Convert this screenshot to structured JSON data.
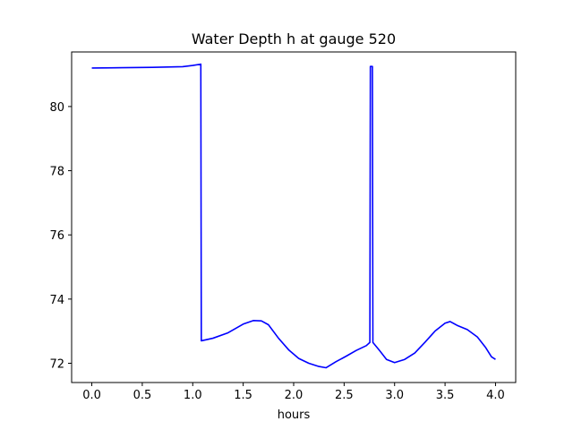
{
  "chart_data": {
    "type": "line",
    "title": "Water Depth h at gauge 520",
    "xlabel": "hours",
    "ylabel": "",
    "xlim": [
      -0.2,
      4.2
    ],
    "ylim": [
      71.4,
      81.7
    ],
    "xticks": [
      0.0,
      0.5,
      1.0,
      1.5,
      2.0,
      2.5,
      3.0,
      3.5,
      4.0
    ],
    "xtick_labels": [
      "0.0",
      "0.5",
      "1.0",
      "1.5",
      "2.0",
      "2.5",
      "3.0",
      "3.5",
      "4.0"
    ],
    "yticks": [
      72,
      74,
      76,
      78,
      80
    ],
    "ytick_labels": [
      "72",
      "74",
      "76",
      "78",
      "80"
    ],
    "grid": false,
    "series": [
      {
        "color": "#0000ff",
        "x": [
          0.0,
          0.3,
          0.6,
          0.9,
          1.0,
          1.08,
          1.085,
          1.2,
          1.35,
          1.5,
          1.6,
          1.68,
          1.75,
          1.85,
          1.95,
          2.05,
          2.15,
          2.25,
          2.32,
          2.42,
          2.52,
          2.62,
          2.72,
          2.755,
          2.76,
          2.78,
          2.785,
          2.85,
          2.92,
          3.0,
          3.1,
          3.2,
          3.3,
          3.4,
          3.5,
          3.55,
          3.62,
          3.72,
          3.82,
          3.9,
          3.96,
          4.0
        ],
        "y": [
          81.2,
          81.21,
          81.22,
          81.24,
          81.28,
          81.32,
          72.7,
          72.78,
          72.95,
          73.22,
          73.33,
          73.32,
          73.2,
          72.78,
          72.42,
          72.15,
          72.0,
          71.9,
          71.86,
          72.05,
          72.22,
          72.4,
          72.55,
          72.65,
          81.25,
          81.25,
          72.65,
          72.4,
          72.12,
          72.02,
          72.12,
          72.32,
          72.65,
          73.0,
          73.25,
          73.3,
          73.18,
          73.05,
          72.82,
          72.5,
          72.2,
          72.12
        ]
      }
    ]
  }
}
